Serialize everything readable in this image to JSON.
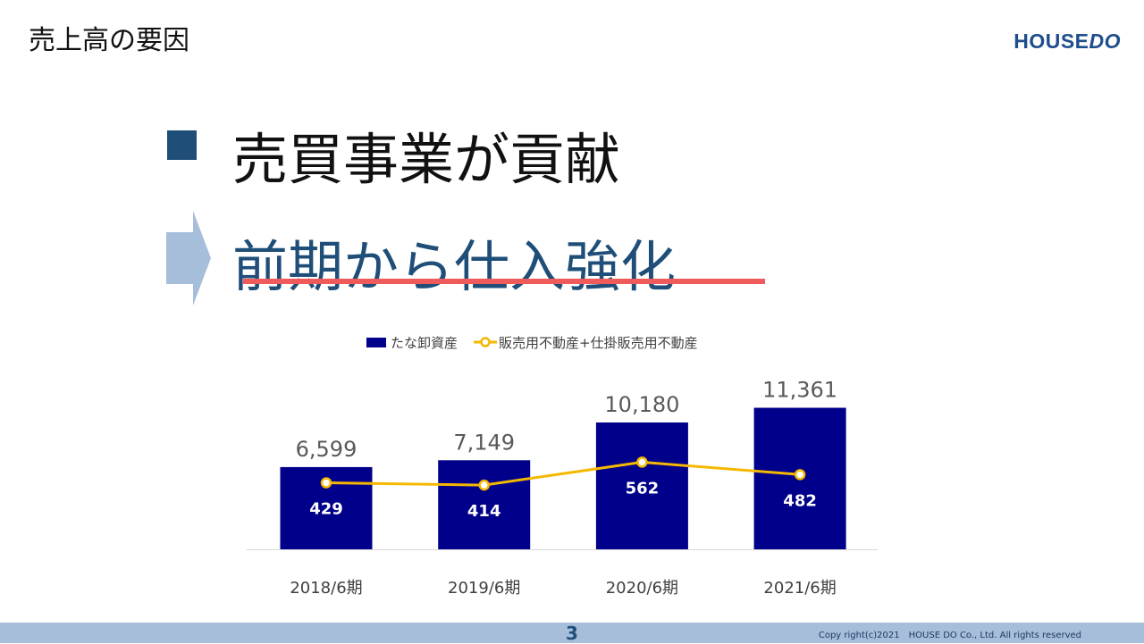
{
  "header": {
    "title": "売上高の要因",
    "logo_text_main": "HOUSE",
    "logo_text_accent": "DO"
  },
  "headline": {
    "line1": "売買事業が貢献",
    "line2": "前期から仕入強化"
  },
  "colors": {
    "bar": "#00008b",
    "line": "#f5b800",
    "accent": "#1f4e79",
    "underline": "#ef5b5b",
    "footer": "#a6bed9"
  },
  "chart_data": {
    "type": "bar",
    "categories": [
      "2018/6期",
      "2019/6期",
      "2020/6期",
      "2021/6期"
    ],
    "series": [
      {
        "name": "たな卸資産",
        "type": "bar",
        "values": [
          6599,
          7149,
          10180,
          11361
        ],
        "labels": [
          "6,599",
          "7,149",
          "10,180",
          "11,361"
        ]
      },
      {
        "name": "販売用不動産+仕掛販売用不動産",
        "type": "line",
        "values": [
          429,
          414,
          562,
          482
        ],
        "labels": [
          "429",
          "414",
          "562",
          "482"
        ]
      }
    ],
    "legend": "top-center",
    "grid": false
  },
  "footer": {
    "page_number": "3",
    "copyright": "Copy right(c)2021　HOUSE DO Co., Ltd. All rights reserved"
  }
}
